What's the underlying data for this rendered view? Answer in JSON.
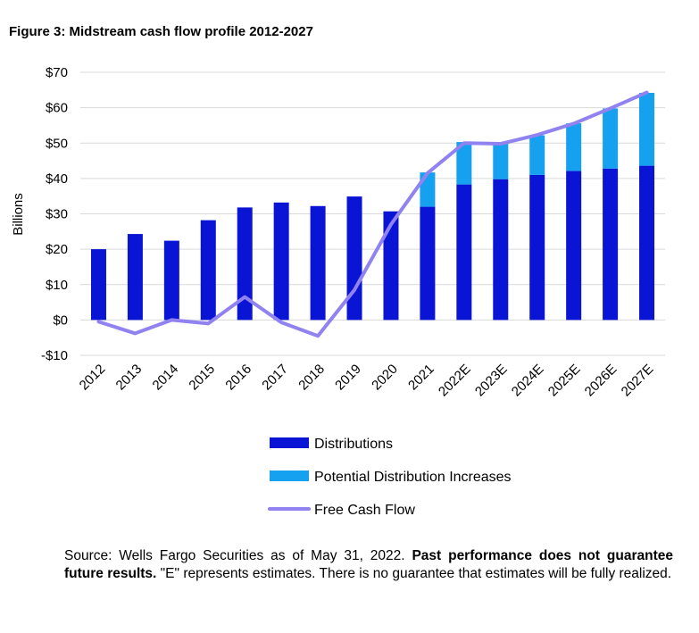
{
  "figure_title": "Figure 3: Midstream cash flow profile 2012-2027",
  "source": {
    "part1": "Source: Wells Fargo Securities as of May 31, 2022. ",
    "bold": "Past performance does not guarantee future results.",
    "part2": " \"E\" represents estimates. There is no guarantee that estimates will be fully realized."
  },
  "colors": {
    "distributions": "#0a14d4",
    "increases": "#15a0f0",
    "fcf": "#9082f0",
    "grid": "#d9d9d9"
  },
  "chart_data": {
    "type": "bar",
    "stacked": true,
    "title": "Figure 3: Midstream cash flow profile 2012-2027",
    "ylabel": "Billions",
    "xlabel": "",
    "ylim": [
      -10,
      70
    ],
    "yticks": [
      -10,
      0,
      10,
      20,
      30,
      40,
      50,
      60,
      70
    ],
    "ytick_labels": [
      "-$10",
      "$0",
      "$10",
      "$20",
      "$30",
      "$40",
      "$50",
      "$60",
      "$70"
    ],
    "grid": true,
    "legend_position": "bottom",
    "categories": [
      "2012",
      "2013",
      "2014",
      "2015",
      "2016",
      "2017",
      "2018",
      "2019",
      "2020",
      "2021",
      "2022E",
      "2023E",
      "2024E",
      "2025E",
      "2026E",
      "2027E"
    ],
    "series": [
      {
        "name": "Distributions",
        "type": "bar",
        "values": [
          20,
          24.3,
          22.4,
          28.2,
          31.8,
          33.2,
          32.2,
          34.9,
          30.7,
          32,
          38.3,
          39.8,
          41,
          42.1,
          42.8,
          43.6
        ]
      },
      {
        "name": "Potential Distribution Increases",
        "type": "bar",
        "values": [
          0,
          0,
          0,
          0,
          0,
          0,
          0,
          0,
          0,
          9.7,
          12,
          10,
          11.2,
          13.5,
          17,
          20.6
        ]
      },
      {
        "name": "Free Cash Flow",
        "type": "line",
        "values": [
          -0.5,
          -3.8,
          0,
          -1,
          6.5,
          -0.7,
          -4.5,
          8.5,
          27,
          41.5,
          50,
          49.8,
          52.3,
          55.5,
          59.8,
          64.3
        ]
      }
    ]
  }
}
